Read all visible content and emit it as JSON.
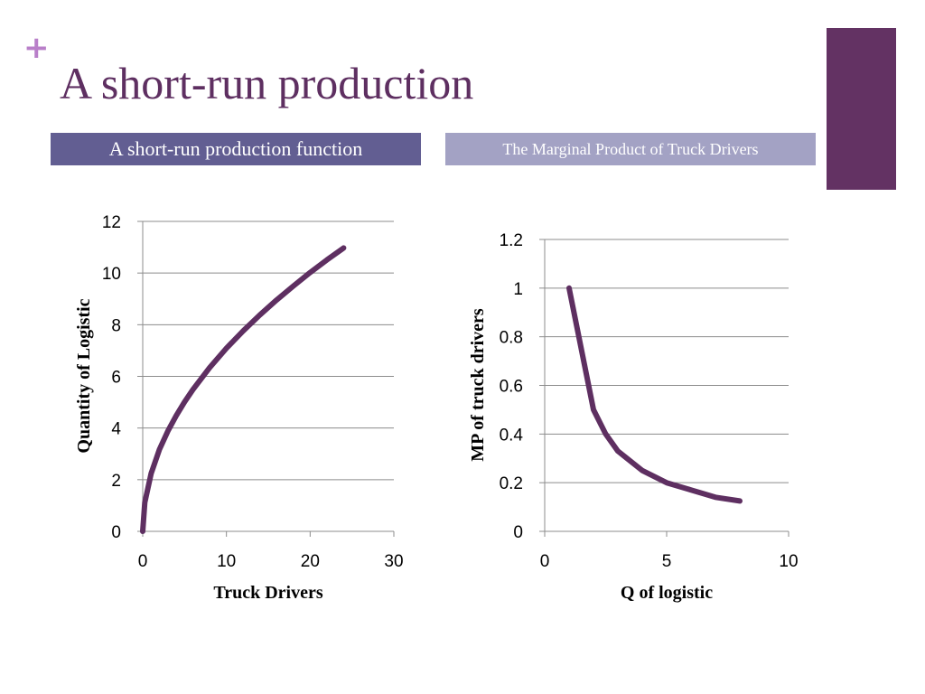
{
  "slide": {
    "plus_symbol": "+",
    "title": "A short-run production",
    "subtitle_left": "A short-run production function",
    "subtitle_right": "The Marginal Product of Truck Drivers"
  },
  "colors": {
    "title": "#5e2f61",
    "plus": "#b97fc9",
    "accent_bar": "#633263",
    "subtitle_left_bg": "#625e92",
    "subtitle_right_bg": "#a3a2c4",
    "curve": "#5e2f61",
    "grid": "#8c8c8c"
  },
  "chart_data": [
    {
      "type": "line",
      "title": "",
      "xlabel": "Truck Drivers",
      "ylabel": "Quantity of Logistic",
      "xlim": [
        0,
        30
      ],
      "ylim": [
        0,
        12
      ],
      "xticks": [
        "0",
        "10",
        "20",
        "30"
      ],
      "yticks": [
        "0",
        "2",
        "4",
        "6",
        "8",
        "10",
        "12"
      ],
      "grid": "horizontal",
      "legend": "none",
      "series": [
        {
          "x": [
            0,
            0.25,
            1,
            2,
            3,
            4,
            5,
            6,
            8,
            10,
            12,
            14,
            16,
            18,
            20,
            22,
            24
          ],
          "y": [
            0,
            1.12,
            2.24,
            3.17,
            3.88,
            4.48,
            5.01,
            5.49,
            6.34,
            7.09,
            7.76,
            8.38,
            8.96,
            9.5,
            10.02,
            10.51,
            10.97
          ]
        }
      ]
    },
    {
      "type": "line",
      "title": "",
      "xlabel": "Q of logistic",
      "ylabel": "MP of truck drivers",
      "xlim": [
        0,
        10
      ],
      "ylim": [
        0,
        1.2
      ],
      "xticks": [
        "0",
        "5",
        "10"
      ],
      "yticks": [
        "0",
        "0.2",
        "0.4",
        "0.6",
        "0.8",
        "1",
        "1.2"
      ],
      "grid": "horizontal",
      "legend": "none",
      "series": [
        {
          "x": [
            1,
            1.5,
            2,
            2.5,
            3,
            4,
            5,
            6,
            7,
            8
          ],
          "y": [
            1,
            0.75,
            0.5,
            0.4,
            0.33,
            0.25,
            0.2,
            0.17,
            0.14,
            0.125
          ]
        }
      ]
    }
  ]
}
